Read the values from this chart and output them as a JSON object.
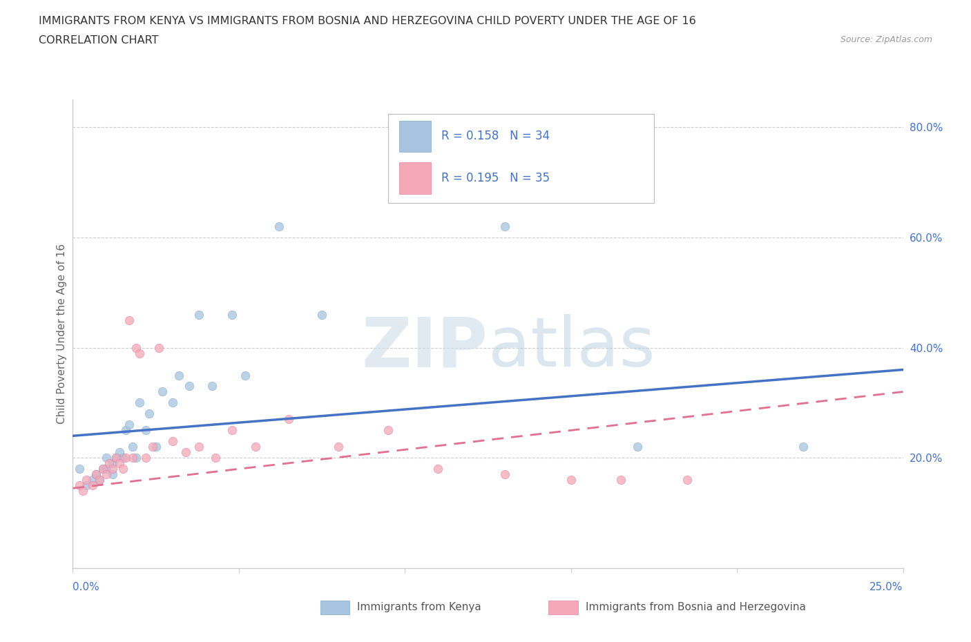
{
  "title_line1": "IMMIGRANTS FROM KENYA VS IMMIGRANTS FROM BOSNIA AND HERZEGOVINA CHILD POVERTY UNDER THE AGE OF 16",
  "title_line2": "CORRELATION CHART",
  "source_text": "Source: ZipAtlas.com",
  "ylabel": "Child Poverty Under the Age of 16",
  "xlim": [
    0.0,
    0.25
  ],
  "ylim": [
    0.0,
    0.85
  ],
  "ytick_values": [
    0.2,
    0.4,
    0.6,
    0.8
  ],
  "kenya_color": "#a8c4e0",
  "kenya_edge_color": "#7aaac8",
  "bosnia_color": "#f4a8b8",
  "bosnia_edge_color": "#e080a0",
  "kenya_line_color": "#4472c4",
  "bosnia_line_color": "#e07090",
  "kenya_R": "0.158",
  "kenya_N": "34",
  "bosnia_R": "0.195",
  "bosnia_N": "35",
  "watermark_ZIP": "ZIP",
  "watermark_atlas": "atlas",
  "legend_kenya": "Immigrants from Kenya",
  "legend_bosnia": "Immigrants from Bosnia and Herzegovina",
  "kenya_scatter_x": [
    0.002,
    0.004,
    0.006,
    0.007,
    0.008,
    0.009,
    0.01,
    0.01,
    0.012,
    0.012,
    0.013,
    0.014,
    0.015,
    0.016,
    0.017,
    0.018,
    0.019,
    0.02,
    0.022,
    0.023,
    0.025,
    0.027,
    0.03,
    0.032,
    0.035,
    0.038,
    0.042,
    0.048,
    0.052,
    0.062,
    0.075,
    0.13,
    0.17,
    0.22
  ],
  "kenya_scatter_y": [
    0.18,
    0.15,
    0.16,
    0.17,
    0.16,
    0.18,
    0.18,
    0.2,
    0.17,
    0.19,
    0.2,
    0.21,
    0.2,
    0.25,
    0.26,
    0.22,
    0.2,
    0.3,
    0.25,
    0.28,
    0.22,
    0.32,
    0.3,
    0.35,
    0.33,
    0.46,
    0.33,
    0.46,
    0.35,
    0.62,
    0.46,
    0.62,
    0.22,
    0.22
  ],
  "bosnia_scatter_x": [
    0.002,
    0.003,
    0.004,
    0.006,
    0.007,
    0.008,
    0.009,
    0.01,
    0.011,
    0.012,
    0.013,
    0.014,
    0.015,
    0.016,
    0.017,
    0.018,
    0.019,
    0.02,
    0.022,
    0.024,
    0.026,
    0.03,
    0.034,
    0.038,
    0.043,
    0.048,
    0.055,
    0.065,
    0.08,
    0.095,
    0.11,
    0.13,
    0.15,
    0.165,
    0.185
  ],
  "bosnia_scatter_y": [
    0.15,
    0.14,
    0.16,
    0.15,
    0.17,
    0.16,
    0.18,
    0.17,
    0.19,
    0.18,
    0.2,
    0.19,
    0.18,
    0.2,
    0.45,
    0.2,
    0.4,
    0.39,
    0.2,
    0.22,
    0.4,
    0.23,
    0.21,
    0.22,
    0.2,
    0.25,
    0.22,
    0.27,
    0.22,
    0.25,
    0.18,
    0.17,
    0.16,
    0.16,
    0.16
  ],
  "kenya_trend_x": [
    0.0,
    0.25
  ],
  "kenya_trend_y": [
    0.24,
    0.36
  ],
  "bosnia_trend_x": [
    0.0,
    0.25
  ],
  "bosnia_trend_y": [
    0.145,
    0.32
  ],
  "grid_color": "#cccccc",
  "background_color": "#ffffff"
}
